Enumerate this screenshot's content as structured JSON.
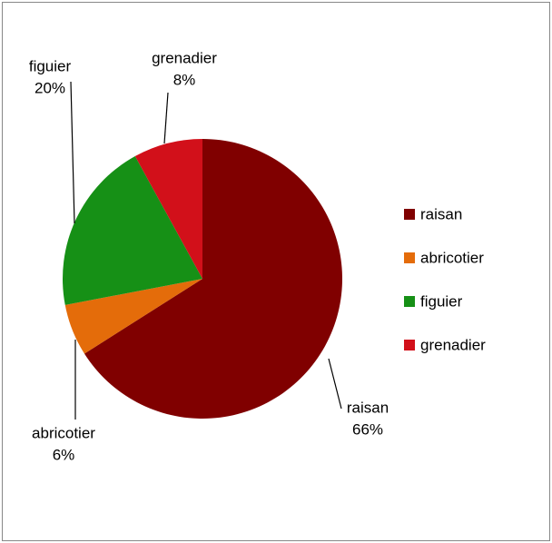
{
  "chart_data": {
    "type": "pie",
    "categories": [
      "raisan",
      "abricotier",
      "figuier",
      "grenadier"
    ],
    "values": [
      66,
      6,
      20,
      8
    ],
    "value_labels": [
      "66%",
      "6%",
      "20%",
      "8%"
    ],
    "colors": [
      "#800000",
      "#e46c0a",
      "#169016",
      "#d2101a"
    ],
    "legend": "right"
  }
}
